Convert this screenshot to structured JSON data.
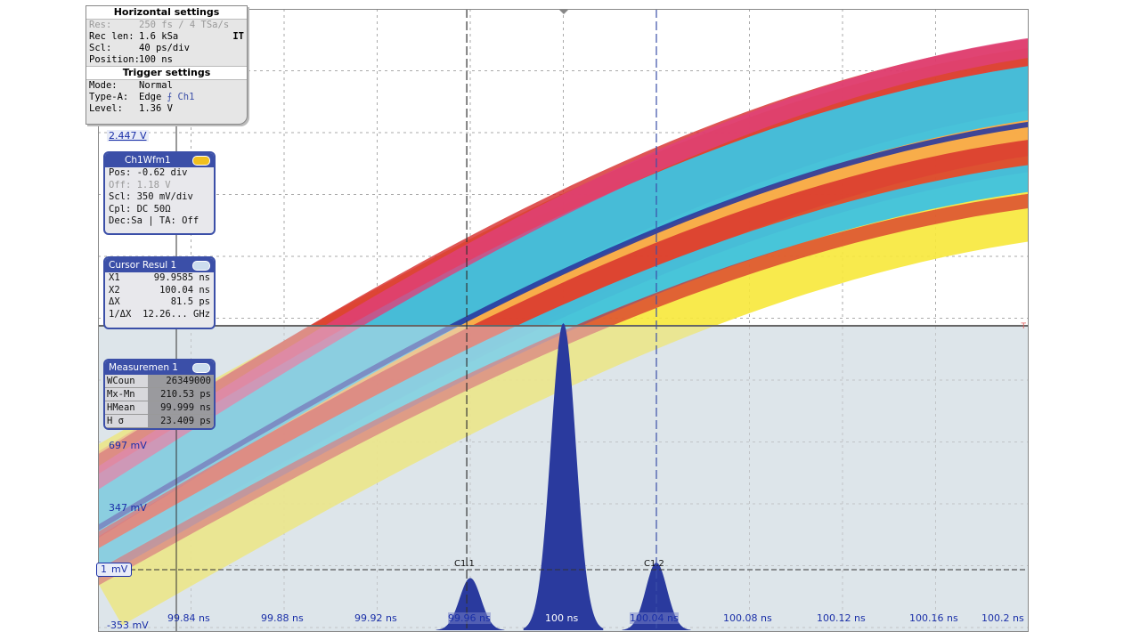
{
  "horizontal_settings": {
    "title": "Horizontal settings",
    "rows": [
      {
        "key": "Res:",
        "value": "250 fs / 4 TSa/s",
        "dim": true
      },
      {
        "key": "Rec len:",
        "value": "1.6 kSa",
        "dim": false
      },
      {
        "key": "Scl:",
        "value": "40 ps/div",
        "dim": false
      },
      {
        "key": "Position:",
        "value": "100 ns",
        "dim": false
      }
    ],
    "badge": "IT"
  },
  "trigger_settings": {
    "title": "Trigger settings",
    "mode_key": "Mode:",
    "mode_value": "Normal",
    "type_key": "Type-A:",
    "type_value": "Edge",
    "type_source": "Ch1",
    "level_key": "Level:",
    "level_value": "1.36 V"
  },
  "top_voltage": "2.447 V",
  "ch1_panel": {
    "title": "Ch1Wfm1",
    "rows": [
      {
        "text": "Pos: -0.62 div",
        "dim": false
      },
      {
        "text": "Off: 1.18 V",
        "dim": true
      },
      {
        "text": "Scl: 350 mV/div",
        "dim": false
      },
      {
        "text": "Cpl: DC 50Ω",
        "dim": false
      },
      {
        "text": "Dec:Sa | TA: Off",
        "dim": false
      }
    ]
  },
  "cursor_panel": {
    "title": "Cursor Resul 1",
    "rows": [
      {
        "k": "X1",
        "v": "99.9585 ns"
      },
      {
        "k": "X2",
        "v": "100.04 ns"
      },
      {
        "k": "ΔX",
        "v": "81.5 ps"
      },
      {
        "k": "1/ΔX",
        "v": "12.26... GHz"
      }
    ]
  },
  "measurement_panel": {
    "title": "Measuremen 1",
    "rows": [
      {
        "k": "WCoun",
        "v": "26349000"
      },
      {
        "k": "Mx-Mn",
        "v": "210.53 ps"
      },
      {
        "k": "HMean",
        "v": "99.999 ns"
      },
      {
        "k": "H σ",
        "v": "23.409 ps"
      }
    ]
  },
  "voltage_labels": [
    "697 mV",
    "347 mV",
    "-353 mV"
  ],
  "ground_marker": "1",
  "ground_label": "mV",
  "x_ticks": [
    "99.84 ns",
    "99.88 ns",
    "99.92 ns",
    "99.96 ns",
    "100 ns",
    "100.04 ns",
    "100.08 ns",
    "100.12 ns",
    "100.16 ns",
    "100.2 ns"
  ],
  "cursor_labels": [
    "C1.1",
    "C1.2"
  ],
  "trigger_marker": "T",
  "colors": {
    "panel_border": "#3b4fa8",
    "histogram": "#2a3a9e",
    "eye_yellow": "#f7e83a",
    "eye_red": "#d62a2a",
    "eye_cyan": "#3ec3e0"
  },
  "chart_data": {
    "type": "histogram",
    "x": [
      99.84,
      99.88,
      99.92,
      99.96,
      100.0,
      100.04,
      100.08,
      100.12,
      100.16,
      100.2
    ],
    "peaks": [
      {
        "center": 99.96,
        "relative_height": 0.17
      },
      {
        "center": 100.0,
        "relative_height": 1.0
      },
      {
        "center": 100.04,
        "relative_height": 0.22
      }
    ]
  }
}
